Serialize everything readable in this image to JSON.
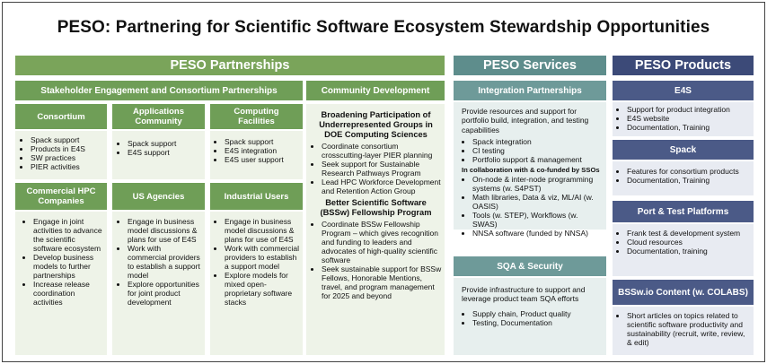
{
  "title": "PESO: Partnering for Scientific Software Ecosystem Stewardship Opportunities",
  "colors": {
    "partnerships": "#7aa45a",
    "services": "#5e8d8c",
    "products": "#3c4a78"
  },
  "partnerships": {
    "header": "PESO Partnerships",
    "stakeholder_header": "Stakeholder Engagement and Consortium Partnerships",
    "community_header": "Community Development",
    "consortium": {
      "title": "Consortium",
      "items": [
        "Spack support",
        "Products in E4S",
        "SW practices",
        "PIER activities"
      ]
    },
    "apps": {
      "title_line1": "Applications",
      "title_line2": "Community",
      "items": [
        "Spack support",
        "E4S support"
      ]
    },
    "computing": {
      "title_line1": "Computing",
      "title_line2": "Facilities",
      "items": [
        "Spack support",
        "E4S integration",
        "E4S user support"
      ]
    },
    "commercial": {
      "title_line1": "Commercial HPC",
      "title_line2": "Companies",
      "items": [
        "Engage in joint activities to advance the scientific software ecosystem",
        "Develop business models to further partnerships",
        "Increase release coordination activities"
      ]
    },
    "agencies": {
      "title": "US Agencies",
      "items": [
        "Engage in business model discussions & plans for use of E4S",
        "Work with commercial providers to establish a support model",
        "Explore opportunities for joint product development"
      ]
    },
    "industrial": {
      "title": "Industrial Users",
      "items": [
        "Engage in business model discussions & plans for use of E4S",
        "Work with commercial providers to establish a support model",
        "Explore models for mixed open-proprietary software stacks"
      ]
    },
    "community": {
      "heading1": "Broadening Participation of Underrepresented Groups in DOE Computing Sciences",
      "items1": [
        "Coordinate consortium crosscutting-layer PIER planning",
        "Seek support for Sustainable Research Pathways Program",
        "Lead HPC Workforce Development and Retention Action Group"
      ],
      "heading2": "Better Scientific Software (BSSw) Fellowship Program",
      "items2": [
        "Coordinate BSSw Fellowship Program – which gives recognition and funding to leaders and advocates of high-quality scientific software",
        "Seek sustainable support for BSSw Fellows, Honorable Mentions, travel, and  program management for 2025 and beyond"
      ]
    }
  },
  "services": {
    "header": "PESO Services",
    "integration": {
      "title": "Integration Partnerships",
      "intro": "Provide resources and support for portfolio build, integration, and testing capabilities",
      "items": [
        "Spack integration",
        "CI testing",
        "Portfolio support & management"
      ],
      "collab": "In collaboration with & co-funded by SSOs",
      "collab_items": [
        "On-node & inter-node programming systems (w. S4PST)",
        "Math libraries, Data & viz, ML/AI (w. OASIS)",
        "Tools (w. STEP), Workflows (w. SWAS)",
        "NNSA software (funded by NNSA)"
      ]
    },
    "sqa": {
      "title": "SQA & Security",
      "intro": "Provide infrastructure to support and leverage product  team SQA efforts",
      "items": [
        "Supply chain, Product quality",
        "Testing, Documentation"
      ]
    }
  },
  "products": {
    "header": "PESO Products",
    "e4s": {
      "title": "E4S",
      "items": [
        "Support for product integration",
        "E4S website",
        "Documentation, Training"
      ]
    },
    "spack": {
      "title": "Spack",
      "items": [
        "Features for consortium products",
        "Documentation, Training"
      ]
    },
    "port": {
      "title": "Port & Test Platforms",
      "items": [
        "Frank test & development system",
        "Cloud resources",
        "Documentation, training"
      ]
    },
    "bssw": {
      "title": "BSSw.io Content (w. COLABS)",
      "items": [
        "Short articles on topics related to scientific software productivity and sustainability (recruit, write, review, & edit)"
      ]
    }
  }
}
